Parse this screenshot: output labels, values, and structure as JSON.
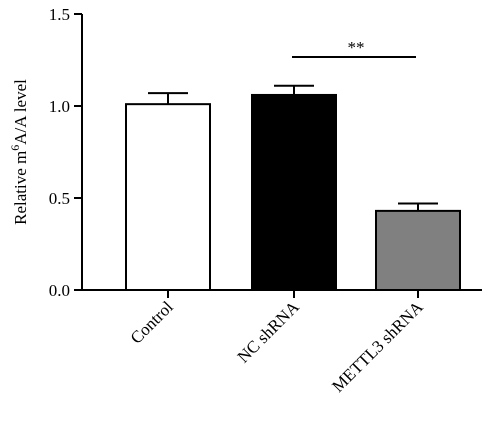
{
  "chart_data": {
    "type": "bar",
    "categories": [
      "Control",
      "NC shRNA",
      "METTL3 shRNA"
    ],
    "values": [
      1.01,
      1.06,
      0.43
    ],
    "errors": [
      0.06,
      0.05,
      0.04
    ],
    "bar_fills": [
      "#ffffff",
      "#000000",
      "#808080"
    ],
    "ylabel": {
      "prefix": "Relative m",
      "superscript": "6",
      "suffix": "A/A level"
    },
    "ylim": [
      0,
      1.5
    ],
    "yticks": [
      0.0,
      0.5,
      1.0,
      1.5
    ],
    "ytick_labels": [
      "0.0",
      "0.5",
      "1.0",
      "1.5"
    ],
    "significance": {
      "label": "**",
      "from_category": 1,
      "to_category": 2
    },
    "grid": false
  }
}
